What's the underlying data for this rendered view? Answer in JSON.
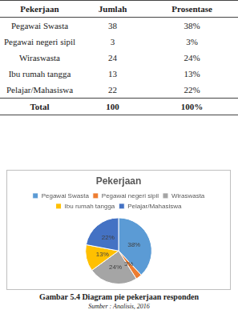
{
  "table": {
    "header": [
      "Pekerjaan",
      "Jumlah",
      "Prosentase"
    ],
    "rows": [
      [
        "Pegawai Swasta",
        "38",
        "38%"
      ],
      [
        "Pegawai negeri sipil",
        "3",
        "3%"
      ],
      [
        "Wiraswasta",
        "24",
        "24%"
      ],
      [
        "Ibu rumah tangga",
        "13",
        "13%"
      ],
      [
        "Pelajar/Mahasiswa",
        "22",
        "22%"
      ],
      [
        "Total",
        "100",
        "100%"
      ]
    ]
  },
  "chart_data": {
    "type": "pie",
    "title": "Pekerjaan",
    "categories": [
      "Pegawai Swasta",
      "Pegawai negeri sipil",
      "Wiraswasta",
      "Ibu rumah tangga",
      "Pelajar/Mahasiswa"
    ],
    "values": [
      38,
      3,
      24,
      13,
      22
    ],
    "value_labels": [
      "38%",
      "3%",
      "24%",
      "13%",
      "22%"
    ],
    "colors": [
      "#5b9bd5",
      "#ed7d31",
      "#a5a5a5",
      "#ffc000",
      "#4472c4"
    ],
    "legend": "top",
    "data_labels": true
  },
  "caption": "Gambar 5.4 Diagram pie pekerjaan responden",
  "source": "Sumber : Analisis, 2016"
}
